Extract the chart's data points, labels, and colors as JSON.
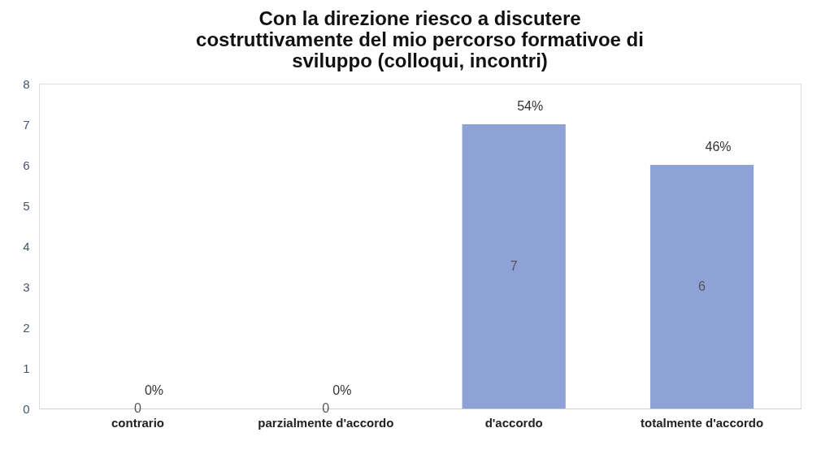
{
  "chart_data": {
    "type": "bar",
    "title": "Con la direzione riesco a discutere costruttivamente del mio percorso formativoe di sviluppo (colloqui, incontri)",
    "categories": [
      "contrario",
      "parzialmente d'accordo",
      "d'accordo",
      "totalmente d'accordo"
    ],
    "values": [
      0,
      0,
      7,
      6
    ],
    "color": "#8fa2d8",
    "ylim": [
      0,
      8
    ],
    "yticks": [
      0,
      1,
      2,
      3,
      4,
      5,
      6,
      7,
      8
    ],
    "grid": false,
    "data_labels": true,
    "annotations": [
      {
        "text": "0%",
        "x": "contrario",
        "y": 0
      },
      {
        "text": "0%",
        "x": "parzialmente d'accordo",
        "y": 0
      },
      {
        "text": "54%",
        "x": "d'accordo",
        "y": 7
      },
      {
        "text": "46%",
        "x": "totalmente d'accordo",
        "y": 6
      }
    ]
  }
}
